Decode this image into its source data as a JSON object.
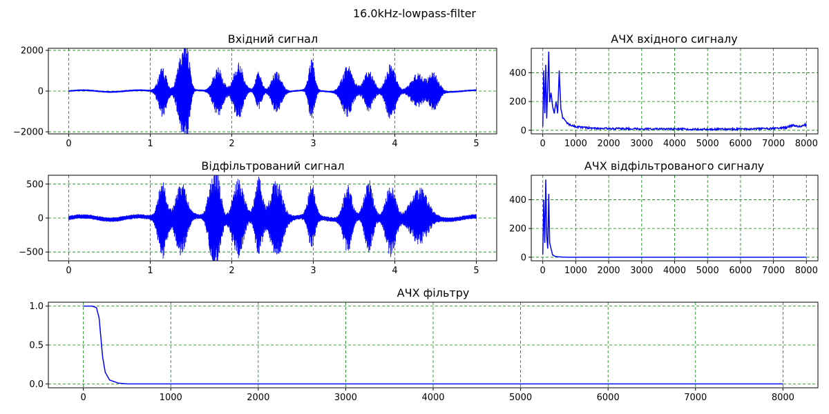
{
  "figure": {
    "title": "16.0kHz-lowpass-filter"
  },
  "colors": {
    "line": "#0000ff",
    "grid": "#008000",
    "axes": "#000000"
  },
  "chart_data": [
    {
      "id": "input",
      "type": "line",
      "title": "Вхідний сигнал",
      "xlim": [
        -0.25,
        5.25
      ],
      "ylim": [
        -2100,
        2100
      ],
      "xticks": [
        0,
        1,
        2,
        3,
        4,
        5
      ],
      "xtick_labels": [
        "0",
        "1",
        "2",
        "3",
        "4",
        "5"
      ],
      "yticks": [
        -2000,
        0,
        2000
      ],
      "ytick_labels": [
        "−2000",
        "0",
        "2000"
      ],
      "grid": true,
      "envelope": {
        "x_range": [
          0,
          5
        ],
        "baseline": 70,
        "noise": 45,
        "bursts": [
          {
            "c": 1.15,
            "w": 0.07,
            "a": 1200
          },
          {
            "c": 1.38,
            "w": 0.07,
            "a": 1650
          },
          {
            "c": 1.45,
            "w": 0.05,
            "a": 1900
          },
          {
            "c": 1.83,
            "w": 0.08,
            "a": 1200
          },
          {
            "c": 2.08,
            "w": 0.08,
            "a": 1400
          },
          {
            "c": 2.33,
            "w": 0.05,
            "a": 900
          },
          {
            "c": 2.55,
            "w": 0.08,
            "a": 1000
          },
          {
            "c": 2.98,
            "w": 0.05,
            "a": 1500
          },
          {
            "c": 3.42,
            "w": 0.09,
            "a": 1300
          },
          {
            "c": 3.68,
            "w": 0.08,
            "a": 1000
          },
          {
            "c": 3.95,
            "w": 0.08,
            "a": 1400
          },
          {
            "c": 4.28,
            "w": 0.11,
            "a": 800
          },
          {
            "c": 4.48,
            "w": 0.08,
            "a": 900
          }
        ]
      }
    },
    {
      "id": "input_spectrum",
      "type": "line",
      "title": "АЧХ вхідного сигналу",
      "xlim": [
        -350,
        8350
      ],
      "ylim": [
        -25,
        570
      ],
      "xticks": [
        0,
        1000,
        2000,
        3000,
        4000,
        5000,
        6000,
        7000,
        8000
      ],
      "xtick_labels": [
        "0",
        "1000",
        "2000",
        "3000",
        "4000",
        "5000",
        "6000",
        "7000",
        "8000"
      ],
      "yticks": [
        0,
        200,
        400
      ],
      "ytick_labels": [
        "0",
        "200",
        "400"
      ],
      "grid": true,
      "points": [
        [
          0,
          30
        ],
        [
          30,
          420
        ],
        [
          60,
          120
        ],
        [
          90,
          460
        ],
        [
          120,
          80
        ],
        [
          150,
          300
        ],
        [
          180,
          550
        ],
        [
          210,
          200
        ],
        [
          250,
          260
        ],
        [
          300,
          160
        ],
        [
          350,
          120
        ],
        [
          400,
          200
        ],
        [
          450,
          120
        ],
        [
          500,
          410
        ],
        [
          550,
          150
        ],
        [
          600,
          90
        ],
        [
          700,
          60
        ],
        [
          800,
          40
        ],
        [
          1000,
          25
        ],
        [
          1500,
          14
        ],
        [
          2000,
          12
        ],
        [
          3000,
          10
        ],
        [
          4000,
          8
        ],
        [
          5000,
          7
        ],
        [
          6000,
          8
        ],
        [
          7000,
          12
        ],
        [
          7400,
          20
        ],
        [
          7600,
          35
        ],
        [
          7800,
          25
        ],
        [
          8000,
          40
        ]
      ],
      "noise_floor": 6
    },
    {
      "id": "filtered",
      "type": "line",
      "title": "Відфільтрований сигнал",
      "xlim": [
        -0.25,
        5.25
      ],
      "ylim": [
        -630,
        630
      ],
      "xticks": [
        0,
        1,
        2,
        3,
        4,
        5
      ],
      "xtick_labels": [
        "0",
        "1",
        "2",
        "3",
        "4",
        "5"
      ],
      "yticks": [
        -500,
        0,
        500
      ],
      "ytick_labels": [
        "−500",
        "0",
        "500"
      ],
      "grid": true,
      "envelope": {
        "x_range": [
          0,
          5
        ],
        "baseline": 40,
        "noise": 35,
        "bursts": [
          {
            "c": 1.15,
            "w": 0.07,
            "a": 550
          },
          {
            "c": 1.38,
            "w": 0.09,
            "a": 520
          },
          {
            "c": 1.75,
            "w": 0.06,
            "a": 480
          },
          {
            "c": 1.83,
            "w": 0.06,
            "a": 560
          },
          {
            "c": 2.08,
            "w": 0.09,
            "a": 560
          },
          {
            "c": 2.33,
            "w": 0.06,
            "a": 560
          },
          {
            "c": 2.55,
            "w": 0.1,
            "a": 560
          },
          {
            "c": 2.98,
            "w": 0.06,
            "a": 450
          },
          {
            "c": 3.42,
            "w": 0.07,
            "a": 480
          },
          {
            "c": 3.68,
            "w": 0.07,
            "a": 520
          },
          {
            "c": 3.95,
            "w": 0.08,
            "a": 520
          },
          {
            "c": 4.3,
            "w": 0.14,
            "a": 400
          }
        ]
      }
    },
    {
      "id": "filtered_spectrum",
      "type": "line",
      "title": "АЧХ відфільтрованого сигналу",
      "xlim": [
        -350,
        8350
      ],
      "ylim": [
        -25,
        570
      ],
      "xticks": [
        0,
        1000,
        2000,
        3000,
        4000,
        5000,
        6000,
        7000,
        8000
      ],
      "xtick_labels": [
        "0",
        "1000",
        "2000",
        "3000",
        "4000",
        "5000",
        "6000",
        "7000",
        "8000"
      ],
      "yticks": [
        0,
        200,
        400
      ],
      "ytick_labels": [
        "0",
        "200",
        "400"
      ],
      "grid": true,
      "points": [
        [
          0,
          20
        ],
        [
          30,
          400
        ],
        [
          60,
          100
        ],
        [
          90,
          540
        ],
        [
          120,
          150
        ],
        [
          150,
          60
        ],
        [
          180,
          440
        ],
        [
          210,
          100
        ],
        [
          250,
          60
        ],
        [
          300,
          15
        ],
        [
          400,
          4
        ],
        [
          600,
          1
        ],
        [
          1000,
          0
        ],
        [
          8000,
          0
        ]
      ],
      "noise_floor": 0
    },
    {
      "id": "filter_response",
      "type": "line",
      "title": "АЧХ фільтру",
      "xlim": [
        -400,
        8400
      ],
      "ylim": [
        -0.05,
        1.05
      ],
      "xticks": [
        0,
        1000,
        2000,
        3000,
        4000,
        5000,
        6000,
        7000,
        8000
      ],
      "xtick_labels": [
        "0",
        "1000",
        "2000",
        "3000",
        "4000",
        "5000",
        "6000",
        "7000",
        "8000"
      ],
      "yticks": [
        0,
        0.5,
        1.0
      ],
      "ytick_labels": [
        "0.0",
        "0.5",
        "1.0"
      ],
      "grid": true,
      "points": [
        [
          0,
          1
        ],
        [
          100,
          1
        ],
        [
          150,
          0.98
        ],
        [
          180,
          0.85
        ],
        [
          200,
          0.6
        ],
        [
          220,
          0.35
        ],
        [
          250,
          0.15
        ],
        [
          300,
          0.05
        ],
        [
          400,
          0.01
        ],
        [
          500,
          0
        ],
        [
          8000,
          0
        ]
      ]
    }
  ]
}
